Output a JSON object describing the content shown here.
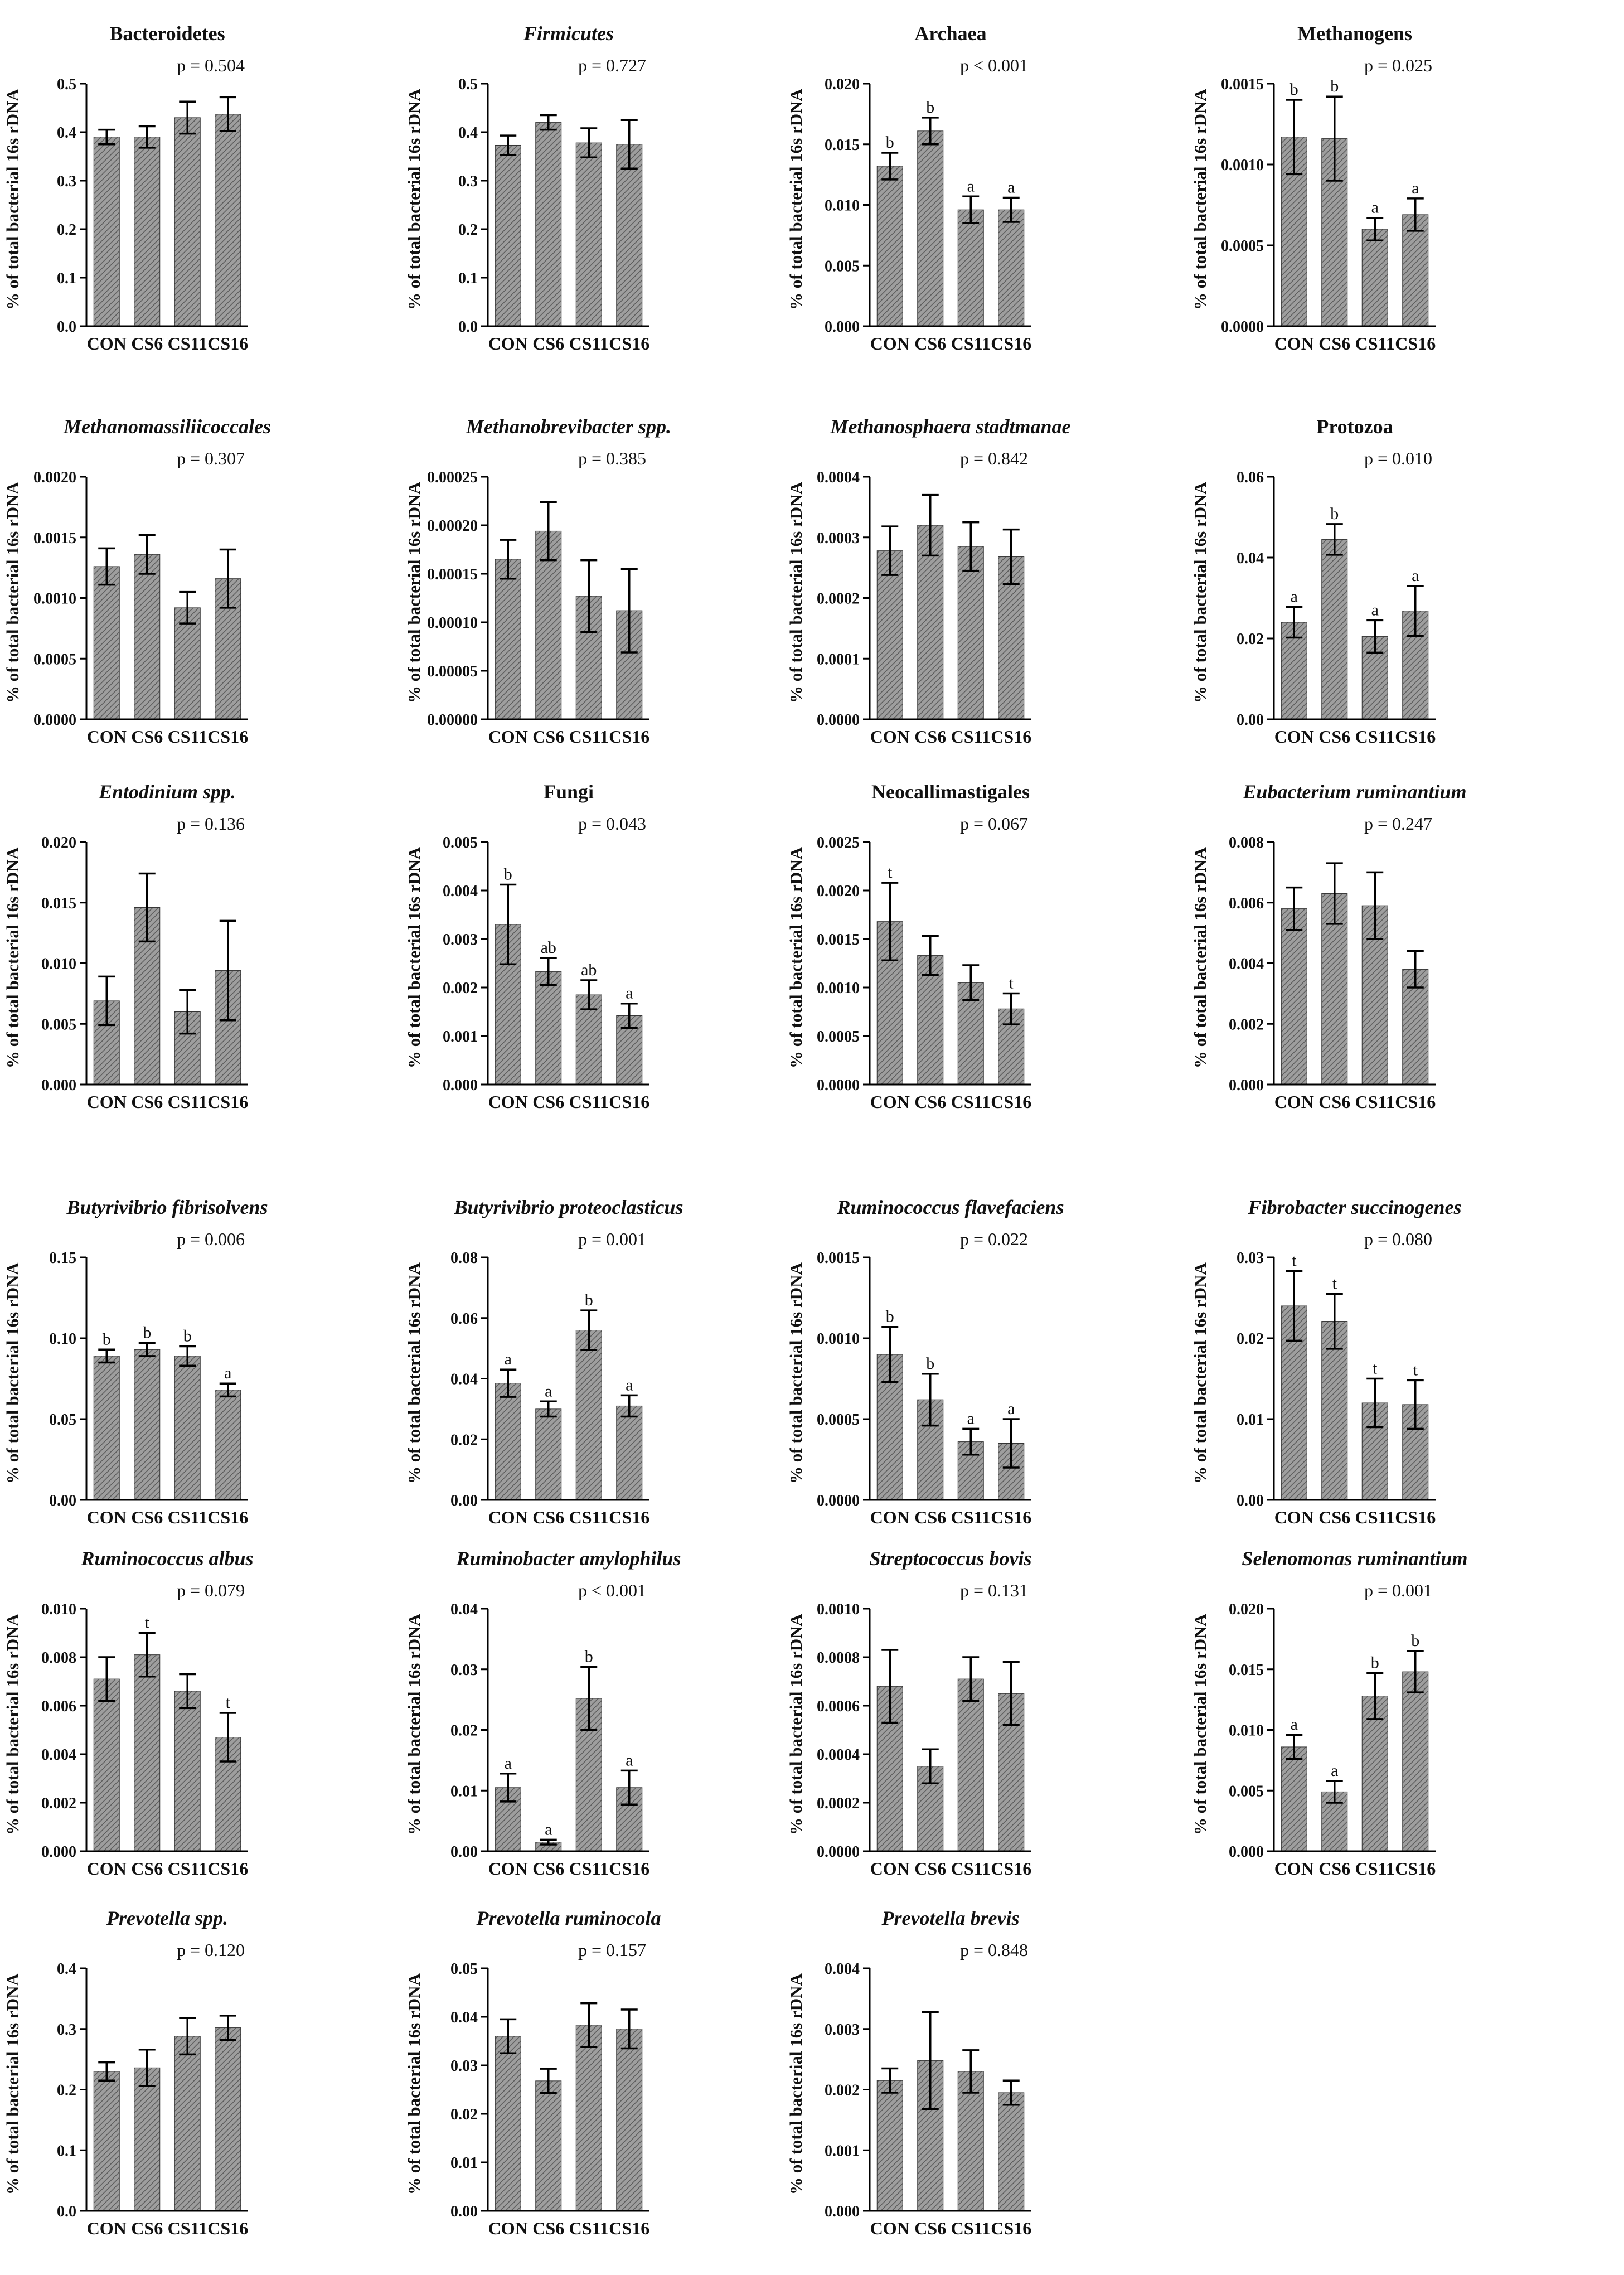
{
  "colors": {
    "bar_fill": "#9e9e9e",
    "hatch": "#5c5c5c",
    "axis": "#000000",
    "text": "#111111"
  },
  "y_label": "% of total bacterial 16s rDNA",
  "chart_data": [
    {
      "type": "bar",
      "title": "Bacteroidetes",
      "italic": false,
      "p_text": "p = 0.504",
      "categories": [
        "CON",
        "CS6",
        "CS11",
        "CS16"
      ],
      "values": [
        0.39,
        0.39,
        0.43,
        0.437
      ],
      "errors": [
        0.015,
        0.022,
        0.033,
        0.035
      ],
      "letters": [
        "",
        "",
        "",
        ""
      ],
      "ylim": [
        0,
        0.5
      ],
      "ticks": [
        "0.0",
        "0.1",
        "0.2",
        "0.3",
        "0.4",
        "0.5"
      ],
      "ylabel": "% of total bacterial 16s rDNA"
    },
    {
      "type": "bar",
      "title": "Firmicutes",
      "italic": true,
      "p_text": "p = 0.727",
      "categories": [
        "CON",
        "CS6",
        "CS11",
        "CS16"
      ],
      "values": [
        0.373,
        0.42,
        0.378,
        0.375
      ],
      "errors": [
        0.02,
        0.015,
        0.03,
        0.05
      ],
      "letters": [
        "",
        "",
        "",
        ""
      ],
      "ylim": [
        0,
        0.5
      ],
      "ticks": [
        "0.0",
        "0.1",
        "0.2",
        "0.3",
        "0.4",
        "0.5"
      ],
      "ylabel": "% of total bacterial 16s rDNA"
    },
    {
      "type": "bar",
      "title": "Archaea",
      "italic": false,
      "p_text": "p < 0.001",
      "categories": [
        "CON",
        "CS6",
        "CS11",
        "CS16"
      ],
      "values": [
        0.0132,
        0.0161,
        0.0096,
        0.0096
      ],
      "errors": [
        0.0011,
        0.0011,
        0.0011,
        0.001
      ],
      "letters": [
        "b",
        "b",
        "a",
        "a"
      ],
      "ylim": [
        0,
        0.02
      ],
      "ticks": [
        "0.000",
        "0.005",
        "0.010",
        "0.015",
        "0.020"
      ],
      "ylabel": "% of total bacterial 16s rDNA"
    },
    {
      "type": "bar",
      "title": "Methanogens",
      "italic": false,
      "p_text": "p = 0.025",
      "categories": [
        "CON",
        "CS6",
        "CS11",
        "CS16"
      ],
      "values": [
        0.00117,
        0.00116,
        0.0006,
        0.00069
      ],
      "errors": [
        0.00023,
        0.00026,
        7e-05,
        0.0001
      ],
      "letters": [
        "b",
        "b",
        "a",
        "a"
      ],
      "ylim": [
        0,
        0.0015
      ],
      "ticks": [
        "0.0000",
        "0.0005",
        "0.0010",
        "0.0015"
      ],
      "ylabel": "% of total bacterial 16s rDNA"
    },
    {
      "type": "bar",
      "title": "Methanomassiliicoccales",
      "italic": true,
      "p_text": "p = 0.307",
      "categories": [
        "CON",
        "CS6",
        "CS11",
        "CS16"
      ],
      "values": [
        0.00126,
        0.00136,
        0.00092,
        0.00116
      ],
      "errors": [
        0.00015,
        0.00016,
        0.00013,
        0.00024
      ],
      "letters": [
        "",
        "",
        "",
        ""
      ],
      "ylim": [
        0,
        0.002
      ],
      "ticks": [
        "0.0000",
        "0.0005",
        "0.0010",
        "0.0015",
        "0.0020"
      ],
      "ylabel": "% of total bacterial 16s rDNA"
    },
    {
      "type": "bar",
      "title": "Methanobrevibacter spp.",
      "italic": true,
      "p_text": "p = 0.385",
      "categories": [
        "CON",
        "CS6",
        "CS11",
        "CS16"
      ],
      "values": [
        0.000165,
        0.000194,
        0.000127,
        0.000112
      ],
      "errors": [
        2e-05,
        3e-05,
        3.7e-05,
        4.3e-05
      ],
      "letters": [
        "",
        "",
        "",
        ""
      ],
      "ylim": [
        0,
        0.00025
      ],
      "ticks": [
        "0.00000",
        "0.00005",
        "0.00010",
        "0.00015",
        "0.00020",
        "0.00025"
      ],
      "ylabel": "% of total bacterial 16s rDNA"
    },
    {
      "type": "bar",
      "title": "Methanosphaera stadtmanae",
      "italic": true,
      "p_text": "p = 0.842",
      "categories": [
        "CON",
        "CS6",
        "CS11",
        "CS16"
      ],
      "values": [
        0.000278,
        0.00032,
        0.000285,
        0.000268
      ],
      "errors": [
        4e-05,
        5e-05,
        4e-05,
        4.5e-05
      ],
      "letters": [
        "",
        "",
        "",
        ""
      ],
      "ylim": [
        0,
        0.0004
      ],
      "ticks": [
        "0.0000",
        "0.0001",
        "0.0002",
        "0.0003",
        "0.0004"
      ],
      "ylabel": "% of total bacterial 16s rDNA"
    },
    {
      "type": "bar",
      "title": "Protozoa",
      "italic": false,
      "p_text": "p = 0.010",
      "categories": [
        "CON",
        "CS6",
        "CS11",
        "CS16"
      ],
      "values": [
        0.024,
        0.0445,
        0.0205,
        0.0268
      ],
      "errors": [
        0.0038,
        0.0038,
        0.004,
        0.0062
      ],
      "letters": [
        "a",
        "b",
        "a",
        "a"
      ],
      "ylim": [
        0,
        0.06
      ],
      "ticks": [
        "0.00",
        "0.02",
        "0.04",
        "0.06"
      ],
      "ylabel": "% of total bacterial 16s rDNA"
    },
    {
      "type": "bar",
      "title": "Entodinium spp.",
      "italic": true,
      "p_text": "p = 0.136",
      "categories": [
        "CON",
        "CS6",
        "CS11",
        "CS16"
      ],
      "values": [
        0.0069,
        0.0146,
        0.006,
        0.0094
      ],
      "errors": [
        0.002,
        0.0028,
        0.0018,
        0.0041
      ],
      "letters": [
        "",
        "",
        "",
        ""
      ],
      "ylim": [
        0,
        0.02
      ],
      "ticks": [
        "0.000",
        "0.005",
        "0.010",
        "0.015",
        "0.020"
      ],
      "ylabel": "% of total bacterial 16s rDNA"
    },
    {
      "type": "bar",
      "title": "Fungi",
      "italic": false,
      "p_text": "p = 0.043",
      "categories": [
        "CON",
        "CS6",
        "CS11",
        "CS16"
      ],
      "values": [
        0.0033,
        0.00233,
        0.00185,
        0.00142
      ],
      "errors": [
        0.00082,
        0.00028,
        0.0003,
        0.00025
      ],
      "letters": [
        "b",
        "ab",
        "ab",
        "a"
      ],
      "ylim": [
        0,
        0.005
      ],
      "ticks": [
        "0.000",
        "0.001",
        "0.002",
        "0.003",
        "0.004",
        "0.005"
      ],
      "ylabel": "% of total bacterial 16s rDNA"
    },
    {
      "type": "bar",
      "title": "Neocallimastigales",
      "italic": false,
      "p_text": "p = 0.067",
      "categories": [
        "CON",
        "CS6",
        "CS11",
        "CS16"
      ],
      "values": [
        0.00168,
        0.00133,
        0.00105,
        0.00078
      ],
      "errors": [
        0.0004,
        0.0002,
        0.00018,
        0.00016
      ],
      "letters": [
        "t",
        "",
        "",
        "t"
      ],
      "ylim": [
        0,
        0.0025
      ],
      "ticks": [
        "0.0000",
        "0.0005",
        "0.0010",
        "0.0015",
        "0.0020",
        "0.0025"
      ],
      "ylabel": "% of total bacterial 16s rDNA"
    },
    {
      "type": "bar",
      "title": "Eubacterium ruminantium",
      "italic": true,
      "p_text": "p = 0.247",
      "categories": [
        "CON",
        "CS6",
        "CS11",
        "CS16"
      ],
      "values": [
        0.0058,
        0.0063,
        0.0059,
        0.0038
      ],
      "errors": [
        0.0007,
        0.001,
        0.0011,
        0.0006
      ],
      "letters": [
        "",
        "",
        "",
        ""
      ],
      "ylim": [
        0,
        0.008
      ],
      "ticks": [
        "0.000",
        "0.002",
        "0.004",
        "0.006",
        "0.008"
      ],
      "ylabel": "% of total bacterial 16s rDNA"
    },
    {
      "type": "bar",
      "title": "Butyrivibrio fibrisolvens",
      "italic": true,
      "p_text": "p = 0.006",
      "categories": [
        "CON",
        "CS6",
        "CS11",
        "CS16"
      ],
      "values": [
        0.089,
        0.093,
        0.089,
        0.068
      ],
      "errors": [
        0.004,
        0.004,
        0.006,
        0.004
      ],
      "letters": [
        "b",
        "b",
        "b",
        "a"
      ],
      "ylim": [
        0,
        0.15
      ],
      "ticks": [
        "0.00",
        "0.05",
        "0.10",
        "0.15"
      ],
      "ylabel": "% of total bacterial 16s rDNA"
    },
    {
      "type": "bar",
      "title": "Butyrivibrio proteoclasticus",
      "italic": true,
      "p_text": "p = 0.001",
      "categories": [
        "CON",
        "CS6",
        "CS11",
        "CS16"
      ],
      "values": [
        0.0385,
        0.03,
        0.056,
        0.031
      ],
      "errors": [
        0.0045,
        0.0025,
        0.0065,
        0.0035
      ],
      "letters": [
        "a",
        "a",
        "b",
        "a"
      ],
      "ylim": [
        0,
        0.08
      ],
      "ticks": [
        "0.00",
        "0.02",
        "0.04",
        "0.06",
        "0.08"
      ],
      "ylabel": "% of total bacterial 16s rDNA"
    },
    {
      "type": "bar",
      "title": "Ruminococcus flavefaciens",
      "italic": true,
      "p_text": "p = 0.022",
      "categories": [
        "CON",
        "CS6",
        "CS11",
        "CS16"
      ],
      "values": [
        0.0009,
        0.00062,
        0.00036,
        0.00035
      ],
      "errors": [
        0.00017,
        0.00016,
        8e-05,
        0.00015
      ],
      "letters": [
        "b",
        "b",
        "a",
        "a"
      ],
      "ylim": [
        0,
        0.0015
      ],
      "ticks": [
        "0.0000",
        "0.0005",
        "0.0010",
        "0.0015"
      ],
      "ylabel": "% of total bacterial 16s rDNA"
    },
    {
      "type": "bar",
      "title": "Fibrobacter succinogenes",
      "italic": true,
      "p_text": "p = 0.080",
      "categories": [
        "CON",
        "CS6",
        "CS11",
        "CS16"
      ],
      "values": [
        0.024,
        0.0221,
        0.012,
        0.0118
      ],
      "errors": [
        0.0043,
        0.0034,
        0.003,
        0.003
      ],
      "letters": [
        "t",
        "t",
        "t",
        "t"
      ],
      "ylim": [
        0,
        0.03
      ],
      "ticks": [
        "0.00",
        "0.01",
        "0.02",
        "0.03"
      ],
      "ylabel": "% of total bacterial 16s rDNA"
    },
    {
      "type": "bar",
      "title": "Ruminococcus albus",
      "italic": true,
      "p_text": "p = 0.079",
      "categories": [
        "CON",
        "CS6",
        "CS11",
        "CS16"
      ],
      "values": [
        0.0071,
        0.0081,
        0.0066,
        0.0047
      ],
      "errors": [
        0.0009,
        0.0009,
        0.0007,
        0.001
      ],
      "letters": [
        "",
        "t",
        "",
        "t"
      ],
      "ylim": [
        0,
        0.01
      ],
      "ticks": [
        "0.000",
        "0.002",
        "0.004",
        "0.006",
        "0.008",
        "0.010"
      ],
      "ylabel": "% of total bacterial 16s rDNA"
    },
    {
      "type": "bar",
      "title": "Ruminobacter amylophilus",
      "italic": true,
      "p_text": "p < 0.001",
      "categories": [
        "CON",
        "CS6",
        "CS11",
        "CS16"
      ],
      "values": [
        0.0105,
        0.0015,
        0.0252,
        0.0105
      ],
      "errors": [
        0.0023,
        0.0004,
        0.0052,
        0.0028
      ],
      "letters": [
        "a",
        "a",
        "b",
        "a"
      ],
      "ylim": [
        0,
        0.04
      ],
      "ticks": [
        "0.00",
        "0.01",
        "0.02",
        "0.03",
        "0.04"
      ],
      "ylabel": "% of total bacterial 16s rDNA"
    },
    {
      "type": "bar",
      "title": "Streptococcus bovis",
      "italic": true,
      "p_text": "p = 0.131",
      "categories": [
        "CON",
        "CS6",
        "CS11",
        "CS16"
      ],
      "values": [
        0.00068,
        0.00035,
        0.00071,
        0.00065
      ],
      "errors": [
        0.00015,
        7e-05,
        9e-05,
        0.00013
      ],
      "letters": [
        "",
        "",
        "",
        ""
      ],
      "ylim": [
        0,
        0.001
      ],
      "ticks": [
        "0.0000",
        "0.0002",
        "0.0004",
        "0.0006",
        "0.0008",
        "0.0010"
      ],
      "ylabel": "% of total bacterial 16s rDNA"
    },
    {
      "type": "bar",
      "title": "Selenomonas ruminantium",
      "italic": true,
      "p_text": "p = 0.001",
      "categories": [
        "CON",
        "CS6",
        "CS11",
        "CS16"
      ],
      "values": [
        0.0086,
        0.0049,
        0.0128,
        0.0148
      ],
      "errors": [
        0.001,
        0.0009,
        0.0019,
        0.0017
      ],
      "letters": [
        "a",
        "a",
        "b",
        "b"
      ],
      "ylim": [
        0,
        0.02
      ],
      "ticks": [
        "0.000",
        "0.005",
        "0.010",
        "0.015",
        "0.020"
      ],
      "ylabel": "% of total bacterial 16s rDNA"
    },
    {
      "type": "bar",
      "title": "Prevotella spp.",
      "italic": true,
      "p_text": "p = 0.120",
      "categories": [
        "CON",
        "CS6",
        "CS11",
        "CS16"
      ],
      "values": [
        0.23,
        0.236,
        0.288,
        0.302
      ],
      "errors": [
        0.015,
        0.03,
        0.03,
        0.02
      ],
      "letters": [
        "",
        "",
        "",
        ""
      ],
      "ylim": [
        0,
        0.4
      ],
      "ticks": [
        "0.0",
        "0.1",
        "0.2",
        "0.3",
        "0.4"
      ],
      "ylabel": "% of total bacterial 16s rDNA"
    },
    {
      "type": "bar",
      "title": "Prevotella ruminocola",
      "italic": true,
      "p_text": "p = 0.157",
      "categories": [
        "CON",
        "CS6",
        "CS11",
        "CS16"
      ],
      "values": [
        0.036,
        0.0268,
        0.0383,
        0.0375
      ],
      "errors": [
        0.0035,
        0.0025,
        0.0045,
        0.004
      ],
      "letters": [
        "",
        "",
        "",
        ""
      ],
      "ylim": [
        0,
        0.05
      ],
      "ticks": [
        "0.00",
        "0.01",
        "0.02",
        "0.03",
        "0.04",
        "0.05"
      ],
      "ylabel": "% of total bacterial 16s rDNA"
    },
    {
      "type": "bar",
      "title": "Prevotella brevis",
      "italic": true,
      "p_text": "p = 0.848",
      "categories": [
        "CON",
        "CS6",
        "CS11",
        "CS16"
      ],
      "values": [
        0.00215,
        0.00248,
        0.0023,
        0.00195
      ],
      "errors": [
        0.0002,
        0.0008,
        0.00035,
        0.0002
      ],
      "letters": [
        "",
        "",
        "",
        ""
      ],
      "ylim": [
        0,
        0.004
      ],
      "ticks": [
        "0.000",
        "0.001",
        "0.002",
        "0.003",
        "0.004"
      ],
      "ylabel": "% of total bacterial 16s rDNA"
    }
  ]
}
